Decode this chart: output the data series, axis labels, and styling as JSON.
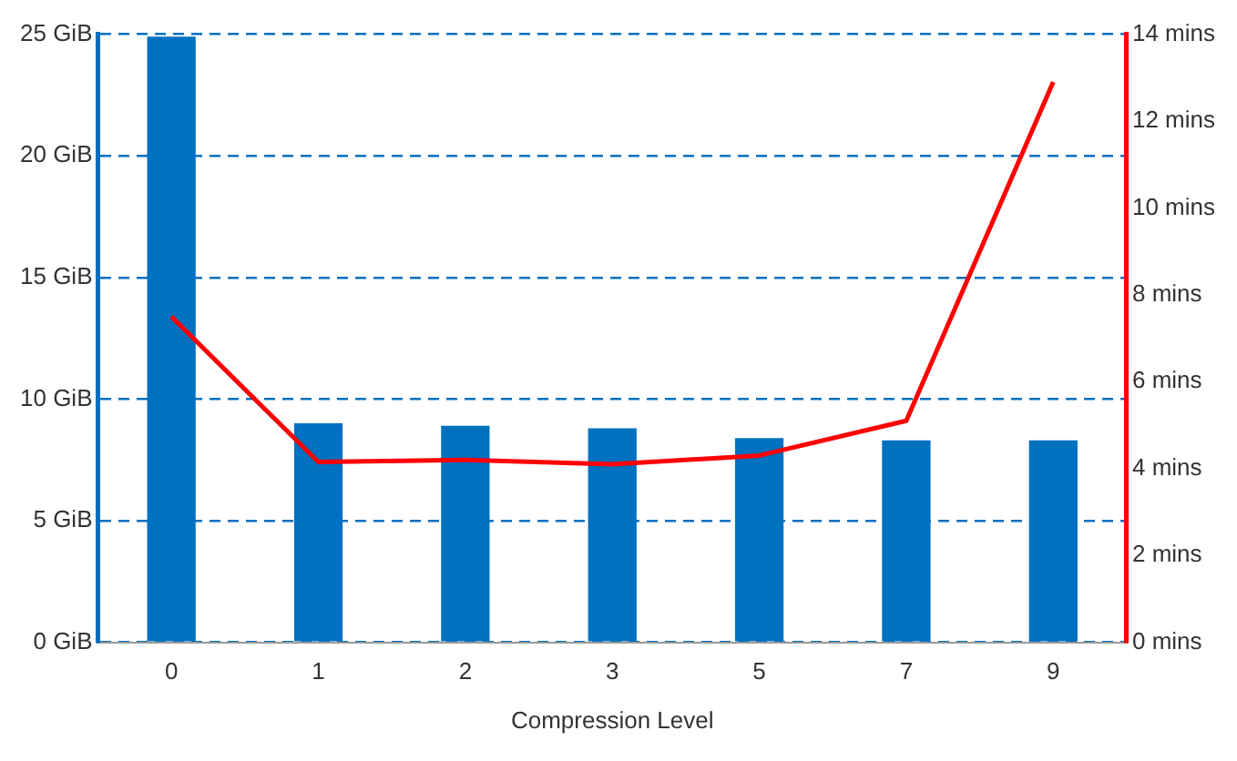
{
  "chart_data": {
    "type": "bar",
    "xlabel": "Compression Level",
    "categories": [
      "0",
      "1",
      "2",
      "3",
      "5",
      "7",
      "9"
    ],
    "series": [
      {
        "color": "#0070c0",
        "values": [
          24.9,
          9.0,
          8.9,
          8.8,
          8.4,
          8.3,
          8.3
        ]
      },
      {
        "type": "line",
        "color": "#ff0000",
        "axis": "y2",
        "marker": "none",
        "values": [
          7.5,
          4.15,
          4.2,
          4.1,
          4.3,
          5.1,
          12.9
        ]
      }
    ],
    "ylim": [
      0,
      25
    ],
    "yticks": [
      {
        "value": 0,
        "label": "0 GiB"
      },
      {
        "value": 5,
        "label": "5 GiB"
      },
      {
        "value": 10,
        "label": "10 GiB"
      },
      {
        "value": 15,
        "label": "15 GiB"
      },
      {
        "value": 20,
        "label": "20 GiB"
      },
      {
        "value": 25,
        "label": "25 GiB"
      }
    ],
    "y2lim": [
      0,
      14
    ],
    "y2ticks": [
      {
        "value": 0,
        "label": "0 mins"
      },
      {
        "value": 2,
        "label": "2 mins"
      },
      {
        "value": 4,
        "label": "4 mins"
      },
      {
        "value": 6,
        "label": "6 mins"
      },
      {
        "value": 8,
        "label": "8 mins"
      },
      {
        "value": 10,
        "label": "10 mins"
      },
      {
        "value": 12,
        "label": "12 mins"
      },
      {
        "value": 14,
        "label": "14 mins"
      }
    ],
    "grid": "y",
    "legend": false
  }
}
